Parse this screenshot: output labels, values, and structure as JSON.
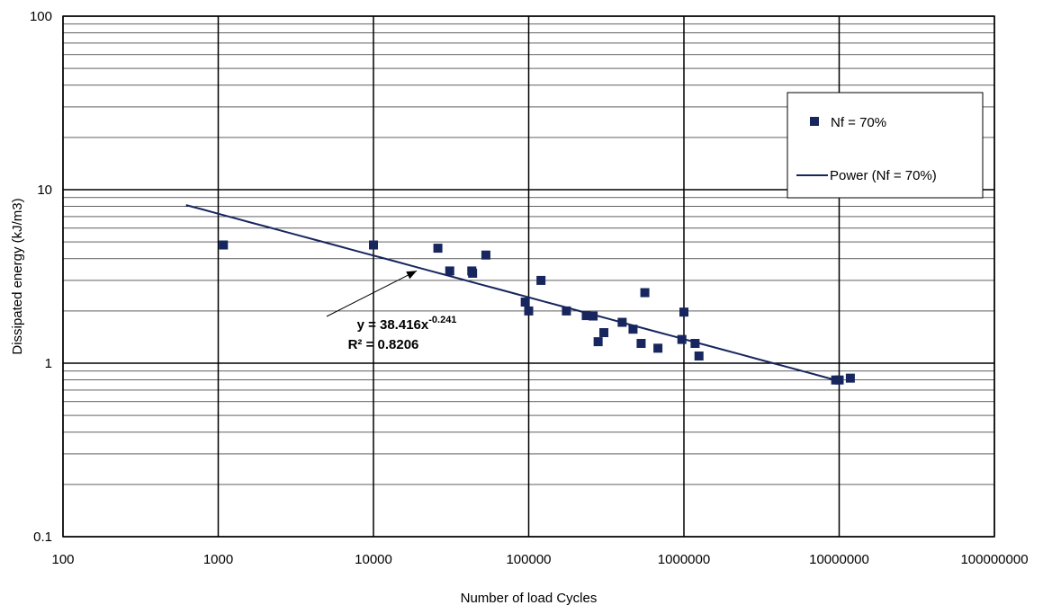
{
  "chart_data": {
    "type": "scatter",
    "title": "",
    "xlabel": "Number of load Cycles",
    "ylabel": "Dissipated energy (kJ/m3)",
    "x_scale": "log",
    "y_scale": "log",
    "xlim": [
      100,
      100000000
    ],
    "ylim": [
      0.1,
      100
    ],
    "x_ticks": [
      "100",
      "1000",
      "10000",
      "100000",
      "1000000",
      "10000000",
      "100000000"
    ],
    "y_ticks": [
      "0.1",
      "1",
      "10",
      "100"
    ],
    "grid": true,
    "legend_position": "right",
    "marker_color": "#17265e",
    "line_color": "#17265e",
    "series": [
      {
        "name": "Nf = 70%",
        "kind": "markers",
        "points": [
          {
            "x": 1080,
            "y": 4.8
          },
          {
            "x": 10000,
            "y": 4.8
          },
          {
            "x": 26000,
            "y": 4.6
          },
          {
            "x": 31000,
            "y": 3.4
          },
          {
            "x": 43000,
            "y": 3.4
          },
          {
            "x": 43500,
            "y": 3.3
          },
          {
            "x": 53000,
            "y": 4.2
          },
          {
            "x": 95000,
            "y": 2.25
          },
          {
            "x": 100000,
            "y": 2.0
          },
          {
            "x": 120000,
            "y": 3.0
          },
          {
            "x": 175000,
            "y": 2.0
          },
          {
            "x": 235000,
            "y": 1.88
          },
          {
            "x": 260000,
            "y": 1.87
          },
          {
            "x": 280000,
            "y": 1.33
          },
          {
            "x": 305000,
            "y": 1.5
          },
          {
            "x": 400000,
            "y": 1.72
          },
          {
            "x": 470000,
            "y": 1.57
          },
          {
            "x": 530000,
            "y": 1.3
          },
          {
            "x": 560000,
            "y": 2.55
          },
          {
            "x": 680000,
            "y": 1.22
          },
          {
            "x": 970000,
            "y": 1.37
          },
          {
            "x": 1000000,
            "y": 1.97
          },
          {
            "x": 1180000,
            "y": 1.3
          },
          {
            "x": 1250000,
            "y": 1.1
          },
          {
            "x": 9500000,
            "y": 0.8
          },
          {
            "x": 10000000,
            "y": 0.8
          },
          {
            "x": 11800000,
            "y": 0.82
          }
        ]
      },
      {
        "name": "Power (Nf = 70%)",
        "kind": "trendline",
        "equation": {
          "a": 38.416,
          "b": -0.241
        },
        "x_range": [
          620,
          9600000
        ]
      }
    ],
    "annotation": {
      "equation_text": "y = 38.416x",
      "exponent_text": "-0.241",
      "r2_text": "R² = 0.8206",
      "arrow_target": {
        "x": 19000
      }
    }
  }
}
